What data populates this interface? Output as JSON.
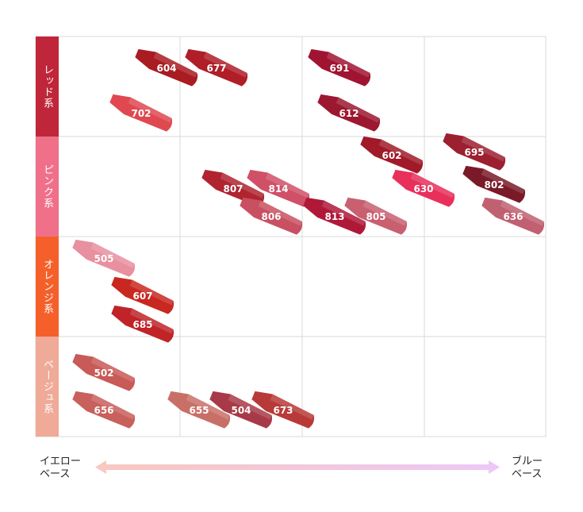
{
  "rows": [
    {
      "label": "レッド系",
      "color": "#c0263a"
    },
    {
      "label": "ピンク系",
      "color": "#f0708a"
    },
    {
      "label": "オレンジ系",
      "color": "#f5602a"
    },
    {
      "label": "ベージュ系",
      "color": "#f0aa98"
    }
  ],
  "items": [
    {
      "label": "604",
      "color": "#a81c22"
    },
    {
      "label": "677",
      "color": "#b01e28"
    },
    {
      "label": "691",
      "color": "#a01432"
    },
    {
      "label": "702",
      "color": "#e04850"
    },
    {
      "label": "612",
      "color": "#9c1830"
    },
    {
      "label": "602",
      "color": "#a01a2a"
    },
    {
      "label": "695",
      "color": "#9c2030"
    },
    {
      "label": "807",
      "color": "#b02430"
    },
    {
      "label": "814",
      "color": "#d05068"
    },
    {
      "label": "630",
      "color": "#e8305a"
    },
    {
      "label": "802",
      "color": "#7a1a28"
    },
    {
      "label": "806",
      "color": "#c85060"
    },
    {
      "label": "813",
      "color": "#b01838"
    },
    {
      "label": "805",
      "color": "#c86070"
    },
    {
      "label": "636",
      "color": "#c06070"
    },
    {
      "label": "505",
      "color": "#e890a0"
    },
    {
      "label": "607",
      "color": "#c82820"
    },
    {
      "label": "685",
      "color": "#c02428"
    },
    {
      "label": "502",
      "color": "#c85a58"
    },
    {
      "label": "656",
      "color": "#c8605c"
    },
    {
      "label": "655",
      "color": "#c87068"
    },
    {
      "label": "504",
      "color": "#a83a48"
    },
    {
      "label": "673",
      "color": "#b83a38"
    }
  ],
  "axis": {
    "left": [
      "イエロー",
      "ベース"
    ],
    "right": [
      "ブルー",
      "ベース"
    ]
  }
}
